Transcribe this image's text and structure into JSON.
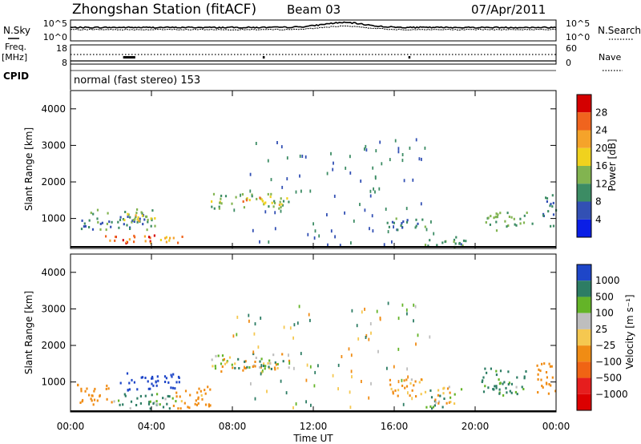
{
  "header": {
    "station": "Zhongshan Station (fitACF)",
    "beam": "Beam 03",
    "date": "07/Apr/2011"
  },
  "panels": {
    "nsky_label": "N.Sky",
    "nsearch_label": "N.Search",
    "nsky_ticks": [
      "10^5",
      "10^0"
    ],
    "nsearch_ticks": [
      "10^5",
      "10^0"
    ],
    "freq_label": "Freq.",
    "freq_unit": "[MHz]",
    "freq_ticks": [
      "18",
      "8"
    ],
    "nave_label": "Nave",
    "nave_ticks": [
      "60",
      "0"
    ],
    "cpid_label": "CPID",
    "cpid_text": "normal (fast stereo) 153"
  },
  "axes": {
    "ylabel": "Slant Range [km]",
    "yticks": [
      "4000",
      "3000",
      "2000",
      "1000"
    ],
    "xlabel": "Time UT",
    "xticks": [
      "00:00",
      "04:00",
      "08:00",
      "12:00",
      "16:00",
      "20:00",
      "00:00"
    ]
  },
  "colorbars": {
    "power": {
      "label": "Power [dB]",
      "ticks": [
        "28",
        "24",
        "20",
        "16",
        "12",
        "8",
        "4"
      ],
      "colors": [
        "#d40000",
        "#f0641e",
        "#f5a32a",
        "#f0d21e",
        "#82b450",
        "#3c8c64",
        "#3250b4",
        "#0a1ee6"
      ]
    },
    "velocity": {
      "label": "Velocity [m s⁻¹]",
      "ticks": [
        "1000",
        "500",
        "100",
        "25",
        "−25",
        "−100",
        "−500",
        "−1000"
      ],
      "colors": [
        "#1e46c8",
        "#2d7d64",
        "#64b428",
        "#bebebe",
        "#f5c850",
        "#f08c14",
        "#f06414",
        "#e61e1e",
        "#dc0000"
      ]
    }
  },
  "chart_data": [
    {
      "type": "heatmap",
      "title": "Power",
      "xlabel": "Time UT",
      "ylabel": "Slant Range [km]",
      "xlim": [
        0,
        24
      ],
      "ylim": [
        180,
        4500
      ],
      "colorbar": {
        "label": "Power [dB]",
        "range": [
          0,
          32
        ]
      },
      "regions": [
        {
          "t": [
            0.5,
            4.3
          ],
          "r": [
            700,
            1300
          ],
          "v": 10
        },
        {
          "t": [
            1.7,
            4.5
          ],
          "r": [
            350,
            600
          ],
          "v": 26
        },
        {
          "t": [
            3.4,
            5.5
          ],
          "r": [
            350,
            550
          ],
          "v": 22
        },
        {
          "t": [
            2.3,
            4.2
          ],
          "r": [
            900,
            1200
          ],
          "v": 17
        },
        {
          "t": [
            6.8,
            10.8
          ],
          "r": [
            1300,
            1700
          ],
          "v": 14
        },
        {
          "t": [
            8.5,
            10.5
          ],
          "r": [
            1400,
            1600
          ],
          "v": 21
        },
        {
          "t": [
            15.5,
            17.5
          ],
          "r": [
            700,
            1100
          ],
          "v": 9
        },
        {
          "t": [
            17.5,
            19.5
          ],
          "r": [
            250,
            600
          ],
          "v": 11
        },
        {
          "t": [
            20.5,
            22.8
          ],
          "r": [
            700,
            1200
          ],
          "v": 12
        },
        {
          "t": [
            23.3,
            24
          ],
          "r": [
            800,
            1700
          ],
          "v": 8
        }
      ]
    },
    {
      "type": "heatmap",
      "title": "Velocity",
      "xlabel": "Time UT",
      "ylabel": "Slant Range [km]",
      "xlim": [
        0,
        24
      ],
      "ylim": [
        180,
        4500
      ],
      "colorbar": {
        "label": "Velocity [m s⁻¹]",
        "range": [
          -1000,
          1000
        ]
      },
      "regions": [
        {
          "t": [
            0.3,
            2.0
          ],
          "r": [
            400,
            1000
          ],
          "v": -300
        },
        {
          "t": [
            2.0,
            5.5
          ],
          "r": [
            300,
            700
          ],
          "v": 150
        },
        {
          "t": [
            2.4,
            5.5
          ],
          "r": [
            800,
            1300
          ],
          "v": 700
        },
        {
          "t": [
            5.0,
            7.0
          ],
          "r": [
            300,
            900
          ],
          "v": -250
        },
        {
          "t": [
            6.8,
            10.8
          ],
          "r": [
            1300,
            1800
          ],
          "v": 0
        },
        {
          "t": [
            8.5,
            10.5
          ],
          "r": [
            1400,
            1600
          ],
          "v": 0
        },
        {
          "t": [
            15.5,
            17.5
          ],
          "r": [
            600,
            1100
          ],
          "v": -200
        },
        {
          "t": [
            17.5,
            19.5
          ],
          "r": [
            300,
            900
          ],
          "v": 0
        },
        {
          "t": [
            20.3,
            22.5
          ],
          "r": [
            600,
            1400
          ],
          "v": 200
        },
        {
          "t": [
            23.0,
            24.0
          ],
          "r": [
            700,
            1600
          ],
          "v": -300
        }
      ]
    }
  ]
}
